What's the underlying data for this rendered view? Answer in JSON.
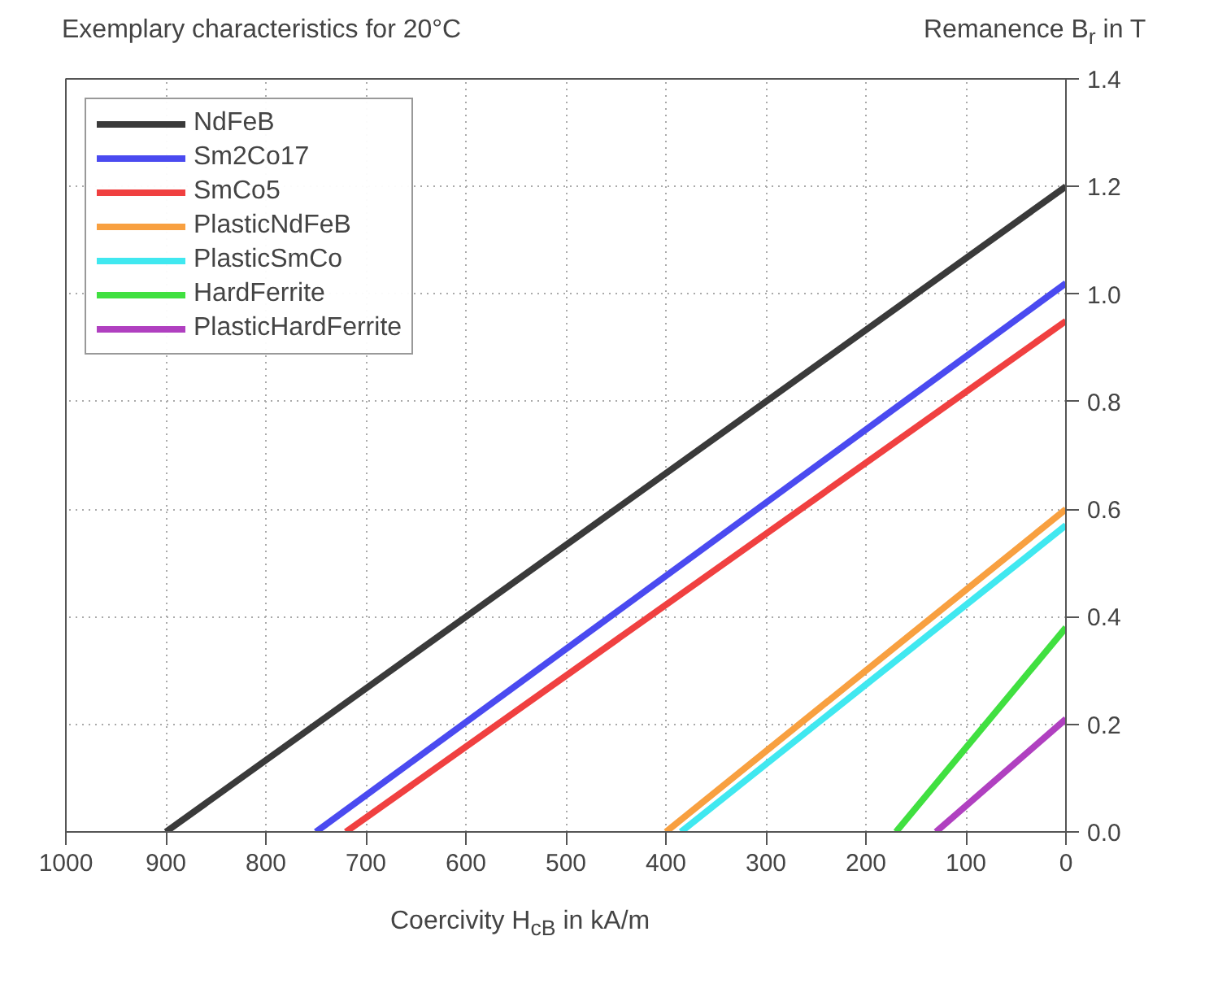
{
  "chart_data": {
    "type": "line",
    "title": "Exemplary characteristics for 20°C",
    "xlabel": "Coercivity H$_{cB}$ in kA/m",
    "ylabel": "Remanence B$_{r}$ in T",
    "xlim": [
      1000,
      0
    ],
    "ylim": [
      0,
      1.4
    ],
    "xticks": [
      1000,
      900,
      800,
      700,
      600,
      500,
      400,
      300,
      200,
      100,
      0
    ],
    "yticks": [
      {
        "value": 0,
        "label": "0.0"
      },
      0.2,
      0.4,
      0.6,
      0.8,
      {
        "value": 1,
        "label": "1.0"
      },
      1.2,
      1.4
    ],
    "grid": true,
    "legend": "top left",
    "series": [
      {
        "name": "NdFeB",
        "color": "#3a3a3a",
        "x": [
          900,
          0
        ],
        "values": [
          0,
          1.2
        ]
      },
      {
        "name": "Sm2Co17",
        "color": "#4a4af0",
        "x": [
          750,
          0
        ],
        "values": [
          0,
          1.02
        ]
      },
      {
        "name": "SmCo5",
        "color": "#f04040",
        "x": [
          720,
          0
        ],
        "values": [
          0,
          0.95
        ]
      },
      {
        "name": "PlasticNdFeB",
        "color": "#f8a040",
        "x": [
          400,
          0
        ],
        "values": [
          0,
          0.6
        ]
      },
      {
        "name": "PlasticSmCo",
        "color": "#40e8f0",
        "x": [
          385,
          0
        ],
        "values": [
          0,
          0.57
        ]
      },
      {
        "name": "HardFerrite",
        "color": "#40e040",
        "x": [
          170,
          0
        ],
        "values": [
          0,
          0.38
        ]
      },
      {
        "name": "PlasticHardFerrite",
        "color": "#b040c0",
        "x": [
          130,
          0
        ],
        "values": [
          0,
          0.21
        ]
      }
    ]
  }
}
